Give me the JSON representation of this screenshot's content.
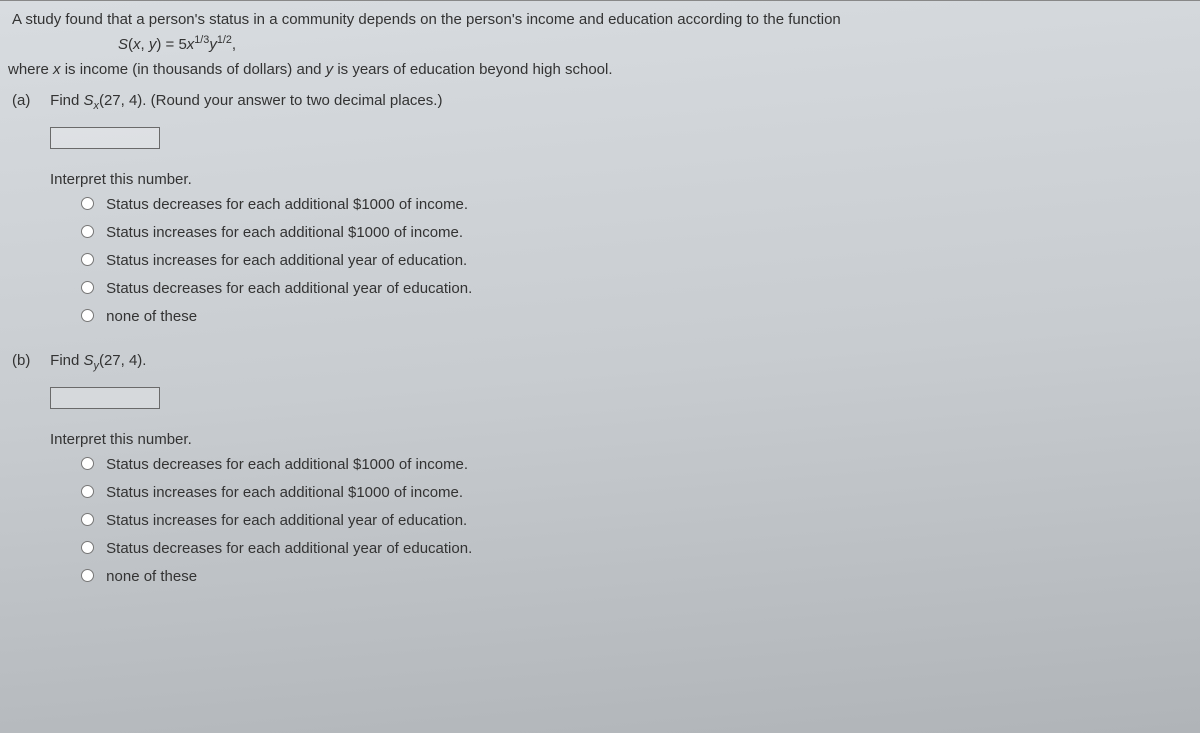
{
  "intro": "A study found that a person's status in a community depends on the person's income and education according to the function",
  "formula": {
    "funcName": "S",
    "lhs_open": "(",
    "var1": "x",
    "comma": ", ",
    "var2": "y",
    "lhs_close": ") = ",
    "coef": "5",
    "base1": "x",
    "exp1": "1/3",
    "base2": "y",
    "exp2": "1/2",
    "trail": ","
  },
  "where": {
    "p1": "where ",
    "xvar": "x",
    "p2": " is income (in thousands of dollars) and ",
    "yvar": "y",
    "p3": " is years of education beyond high school."
  },
  "partA": {
    "label": "(a)",
    "q1": "Find ",
    "funcS": "S",
    "sub": "x",
    "q2": "(27, 4). (Round your answer to two decimal places.)",
    "interpret": "Interpret this number.",
    "options": [
      "Status decreases for each additional $1000 of income.",
      "Status increases for each additional $1000 of income.",
      "Status increases for each additional year of education.",
      "Status decreases for each additional year of education.",
      "none of these"
    ]
  },
  "partB": {
    "label": "(b)",
    "q1": "Find ",
    "funcS": "S",
    "sub": "y",
    "q2": "(27, 4).",
    "interpret": "Interpret this number.",
    "options": [
      "Status decreases for each additional $1000 of income.",
      "Status increases for each additional $1000 of income.",
      "Status increases for each additional year of education.",
      "Status decreases for each additional year of education.",
      "none of these"
    ]
  },
  "colors": {
    "text": "#333333",
    "bg_top": "#d8dce0",
    "bg_bottom": "#b0b4b8",
    "box_border": "#6a6a6a"
  },
  "typography": {
    "font_family": "Verdana",
    "base_pt": 11
  }
}
